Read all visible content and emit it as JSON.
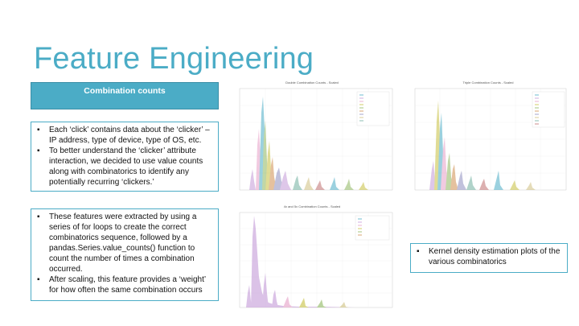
{
  "slide": {
    "title": "Feature Engineering",
    "header_box_label": "Combination counts",
    "box1_bullets": [
      "Each ‘click’ contains data about the ‘clicker’ – IP address, type of device, type of OS, etc.",
      "To better understand the ‘clicker’ attribute interaction, we decided to use value counts along with combinatorics to identify any potentially recurring ‘clickers.’"
    ],
    "box2_bullets": [
      "These features were extracted by using a series of for loops to create the correct combinatorics sequence, followed by a pandas.Series.value_counts() function to count the number of times a combination occurred.",
      "After scaling, this feature provides a ‘weight’ for how often the same combination occurs"
    ],
    "box3_bullets": [
      "Kernel density estimation plots of the various combinatorics"
    ]
  },
  "plots": {
    "double": {
      "title": "Double Combination Counts - Scaled"
    },
    "triple": {
      "title": "Triple Combination Counts - Scaled"
    },
    "quad": {
      "title": "4x and 5x Combination Counts - Scaled"
    }
  },
  "colors": {
    "accent": "#4bacc6",
    "series": [
      "#4bacc6",
      "#c49bd8",
      "#e6a0c8",
      "#c8c040",
      "#8fb860",
      "#d09050",
      "#9090c0",
      "#d0c080",
      "#70b0a0",
      "#c07070"
    ]
  }
}
